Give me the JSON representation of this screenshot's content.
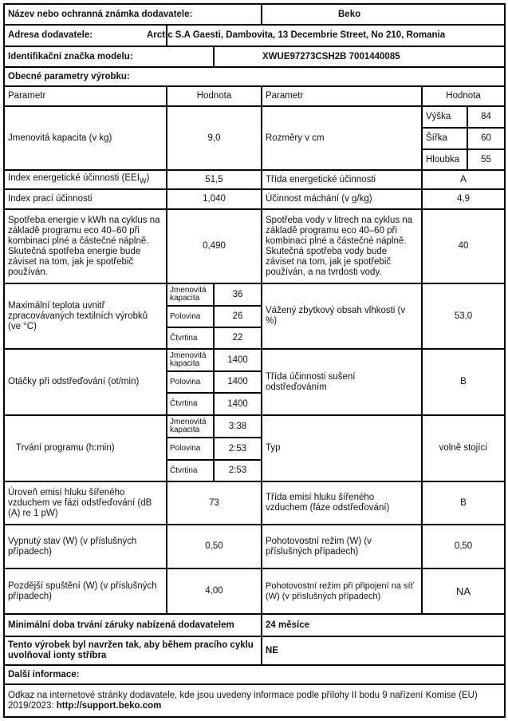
{
  "supplier": {
    "name_label": "Název nebo ochranná známka dodavatele:",
    "name": "Beko",
    "address_label": "Adresa dodavatele:",
    "address": "Arctic S.A  Gaesti, Dambovita, 13 Decembrie Street, No 210, Romania",
    "model_label": "Identifikační značka modelu:",
    "model": "XWUE97273CSH2B 7001440085"
  },
  "general": {
    "title": "Obecné parametry výrobku:",
    "col_param": "Parametr",
    "col_value": "Hodnota"
  },
  "rows": {
    "capacity": {
      "label": "Jmenovitá kapacita (v kg)",
      "value": "9,0"
    },
    "dimensions": {
      "label": "Rozměry v cm",
      "height_label": "Výška",
      "height": "84",
      "width_label": "Šířka",
      "width": "60",
      "depth_label": "Hloubka",
      "depth": "55"
    },
    "eei": {
      "label": "Index energetické účinnosti (EEI",
      "label_sub": "W",
      "label_end": ")",
      "value": "51,5"
    },
    "energy_class": {
      "label": "Třída energetické účinnosti",
      "value": "A"
    },
    "washing_index": {
      "label": "Index prací účinnosti",
      "value": "1,040"
    },
    "rinsing": {
      "label": "Účinnost máchání (v g/kg)",
      "value": "4,9"
    },
    "energy": {
      "label": "Spotřeba energie v kWh na cyklus na základě programu eco 40–60 při kombinaci plné a částečné náplně. Skutečná spotřeba energie bude záviset na tom, jak je spotřebič používán.",
      "value": "0,490"
    },
    "water": {
      "label": "Spotřeba vody v litrech na cyklus na základě programu eco 40–60 při kombinaci plné a částečné náplně. Skutečná spotřeba vody bude záviset na tom, jak je spotřebič používán, a na tvrdosti vody.",
      "value": "40"
    },
    "sub_labels": {
      "rated": "Jmenovitá kapacita",
      "half": "Polovina",
      "quarter": "Čtvrtina"
    },
    "temperature": {
      "label": "Maximální teplota uvnitř zpracovávaných textilních výrobků (ve °C)",
      "rated": "36",
      "half": "26",
      "quarter": "22"
    },
    "moisture": {
      "label": "Vážený zbytkový obsah vlhkosti (v %)",
      "value": "53,0"
    },
    "spin": {
      "label": "Otáčky při odstřeďování (ot/min)",
      "rated": "1400",
      "half": "1400",
      "quarter": "1400"
    },
    "spin_class": {
      "label": "Třída účinnosti sušení odstřeďováním",
      "value": "B"
    },
    "duration": {
      "label": "Trvání programu (h:min)",
      "rated": "3:38",
      "half": "2:53",
      "quarter": "2:53"
    },
    "type": {
      "label": "Typ",
      "value": "volně stojící"
    },
    "noise": {
      "label": "Úroveň emisí hluku šířeného vzduchem ve fázi odstřeďování (dB (A) re 1 pW)",
      "value": "73"
    },
    "noise_class": {
      "label": "Třída emisí hluku šířeného vzduchem (fáze odstřeďování)",
      "value": "B"
    },
    "off": {
      "label": "Vypnutý stav (W) (v příslušných případech)",
      "value": "0,50"
    },
    "standby": {
      "label": "Pohotovostní režim (W) (v příslušných případech)",
      "value": "0,50"
    },
    "delay": {
      "label": "Pozdější spuštění (W) (v příslušných případech)",
      "value": "4,00"
    },
    "network_standby": {
      "label": "Pohotovostní režim při připojení na síť (W) (v příslušných případech)",
      "value": "NA"
    }
  },
  "warranty": {
    "label": "Minimální doba trvání záruky nabízená dodavatelem",
    "value": "24  měsíce"
  },
  "silver": {
    "label": "Tento výrobek byl navržen tak, aby během pracího cyklu uvolňoval ionty stříbra",
    "value": "NE"
  },
  "more": {
    "title": "Další informace:",
    "text": "Odkaz na internetové stránky dodavatele, kde jsou uvedeny informace podle přílohy II bodu 9 nařízení Komise (EU) 2019/2023:",
    "link": "http://support.beko.com"
  }
}
